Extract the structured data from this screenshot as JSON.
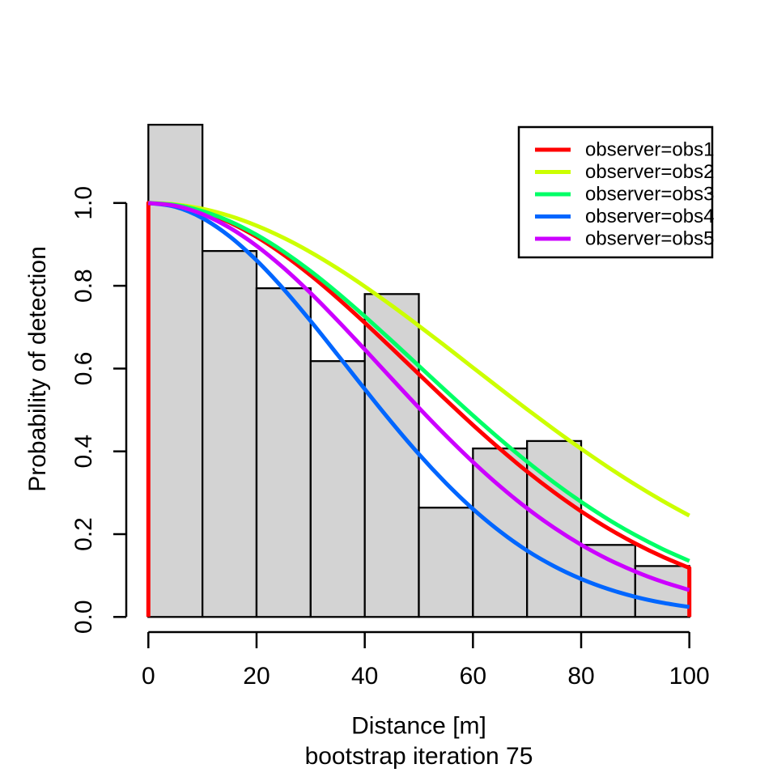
{
  "chart_data": {
    "type": "line",
    "title": "",
    "xlabel": "Distance [m]",
    "xlabel_line2": "bootstrap iteration 75",
    "ylabel": "Probability of detection",
    "xlim": [
      0,
      100
    ],
    "ylim": [
      0,
      1.0
    ],
    "grid": false,
    "x_tick_values": [
      0,
      20,
      40,
      60,
      80,
      100
    ],
    "x_tick_labels": [
      "0",
      "20",
      "40",
      "60",
      "80",
      "100"
    ],
    "y_tick_values": [
      0.0,
      0.2,
      0.4,
      0.6,
      0.8,
      1.0
    ],
    "y_tick_labels": [
      "0.0",
      "0.2",
      "0.4",
      "0.6",
      "0.8",
      "1.0"
    ],
    "axis_color": "#000000",
    "histogram": {
      "type": "bar",
      "bin_start": 0,
      "bin_width": 10,
      "bin_edges": [
        0,
        10,
        20,
        30,
        40,
        50,
        60,
        70,
        80,
        90,
        100
      ],
      "values": [
        1.189,
        0.884,
        0.794,
        0.618,
        0.78,
        0.264,
        0.407,
        0.425,
        0.174,
        0.123
      ],
      "fill": "#D3D3D3",
      "border": "#000000"
    },
    "x_samples": [
      0,
      5,
      10,
      15,
      20,
      25,
      30,
      35,
      40,
      45,
      50,
      55,
      60,
      65,
      70,
      75,
      80,
      85,
      90,
      95,
      100
    ],
    "series": [
      {
        "name": "observer=obs1",
        "color": "#FF0000",
        "edge_verticals": true,
        "values": [
          1.0,
          0.9947,
          0.9789,
          0.9531,
          0.9182,
          0.8751,
          0.8252,
          0.7699,
          0.7107,
          0.649,
          0.5865,
          0.5243,
          0.4638,
          0.4058,
          0.3514,
          0.301,
          0.2551,
          0.2139,
          0.1775,
          0.1458,
          0.1183
        ]
      },
      {
        "name": "observer=obs2",
        "color": "#CCFF00",
        "edge_verticals": false,
        "values": [
          1.0,
          0.9965,
          0.986,
          0.9688,
          0.9452,
          0.9158,
          0.881,
          0.8416,
          0.7983,
          0.752,
          0.7033,
          0.6533,
          0.6024,
          0.5517,
          0.5017,
          0.453,
          0.4062,
          0.3617,
          0.3197,
          0.2807,
          0.2447
        ]
      },
      {
        "name": "observer=obs3",
        "color": "#00FF66",
        "edge_verticals": false,
        "values": [
          1.0,
          0.995,
          0.9802,
          0.956,
          0.9231,
          0.8825,
          0.8353,
          0.7827,
          0.7261,
          0.667,
          0.6065,
          0.5461,
          0.4868,
          0.4296,
          0.3753,
          0.3247,
          0.278,
          0.2357,
          0.1979,
          0.1645,
          0.1353
        ]
      },
      {
        "name": "observer=obs4",
        "color": "#0066FF",
        "edge_verticals": false,
        "values": [
          1.0,
          0.9907,
          0.9634,
          0.9194,
          0.8613,
          0.7919,
          0.7147,
          0.633,
          0.5503,
          0.4696,
          0.3933,
          0.3233,
          0.2608,
          0.2066,
          0.1603,
          0.1225,
          0.0918,
          0.0674,
          0.0486,
          0.0344,
          0.024
        ]
      },
      {
        "name": "observer=obs5",
        "color": "#CC00FF",
        "edge_verticals": false,
        "values": [
          1.0,
          0.9932,
          0.9731,
          0.9404,
          0.8966,
          0.8432,
          0.7822,
          0.7158,
          0.6461,
          0.5754,
          0.5054,
          0.4379,
          0.3743,
          0.3156,
          0.2625,
          0.2154,
          0.1743,
          0.1392,
          0.1096,
          0.0851,
          0.0652
        ]
      }
    ],
    "legend": {
      "position": "top-right",
      "border_color": "#000000",
      "background": "#FFFFFF",
      "entries": [
        "observer=obs1",
        "observer=obs2",
        "observer=obs3",
        "observer=obs4",
        "observer=obs5"
      ]
    }
  }
}
